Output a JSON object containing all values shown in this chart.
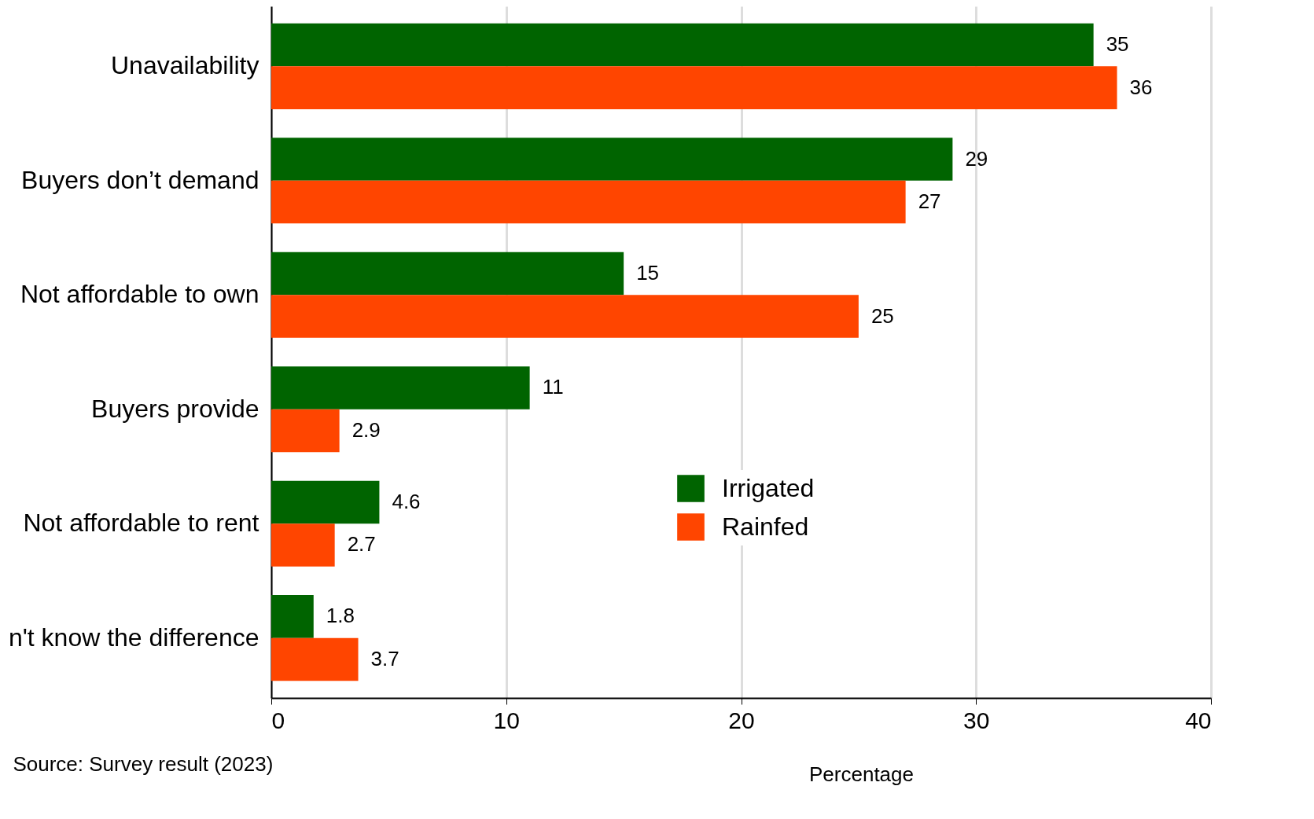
{
  "chart_data": {
    "type": "bar",
    "orientation": "horizontal",
    "xlabel": "Percentage",
    "categories": [
      "Unavailability",
      "Buyers don’t demand",
      "Not affordable to own",
      "Buyers provide",
      "Not affordable to rent",
      "n't know the difference"
    ],
    "series": [
      {
        "name": "Irrigated",
        "color": "#006400",
        "values": [
          35,
          29,
          15,
          11,
          4.6,
          1.8
        ]
      },
      {
        "name": "Rainfed",
        "color": "#ff4500",
        "values": [
          36,
          27,
          25,
          2.9,
          2.7,
          3.7
        ]
      }
    ],
    "xlim": [
      0,
      40
    ],
    "xticks": [
      0,
      10,
      20,
      30,
      40
    ],
    "grid": "x",
    "legend": "right",
    "data_labels": true,
    "annotations": [
      "Source: Survey result (2023)"
    ]
  }
}
